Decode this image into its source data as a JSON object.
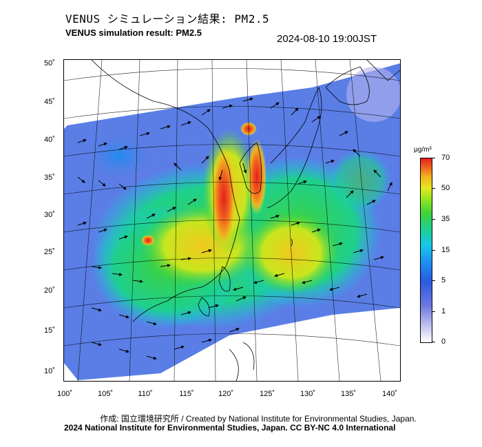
{
  "title_jp": "VENUS シミュレーション結果: PM2.5",
  "title_en": "VENUS simulation result: PM2.5",
  "timestamp": "2024-08-10 19:00JST",
  "footer_credit": "作成: 国立環境研究所 / Created by National Institute for Environmental Studies, Japan.",
  "footer_copyright": "2024 National Institute for Environmental Studies, Japan. CC BY-NC 4.0 International",
  "map": {
    "lon_ticks": [
      "100˚",
      "105˚",
      "110˚",
      "115˚",
      "120˚",
      "125˚",
      "130˚",
      "135˚",
      "140˚"
    ],
    "lat_ticks": [
      "50˚",
      "45˚",
      "40˚",
      "35˚",
      "30˚",
      "25˚",
      "20˚",
      "15˚",
      "10˚"
    ],
    "lon_range": [
      100,
      142
    ],
    "lat_range": [
      9,
      51
    ]
  },
  "colorbar": {
    "unit": "μg/m³",
    "labels": [
      "70",
      "50",
      "35",
      "15",
      "5",
      "1",
      "0"
    ]
  },
  "colors": {
    "land_outline": "#000000",
    "wind_arrow": "#000000",
    "high": "#e61e1e",
    "mid": "#96e61e",
    "low": "#2a5ae0"
  }
}
